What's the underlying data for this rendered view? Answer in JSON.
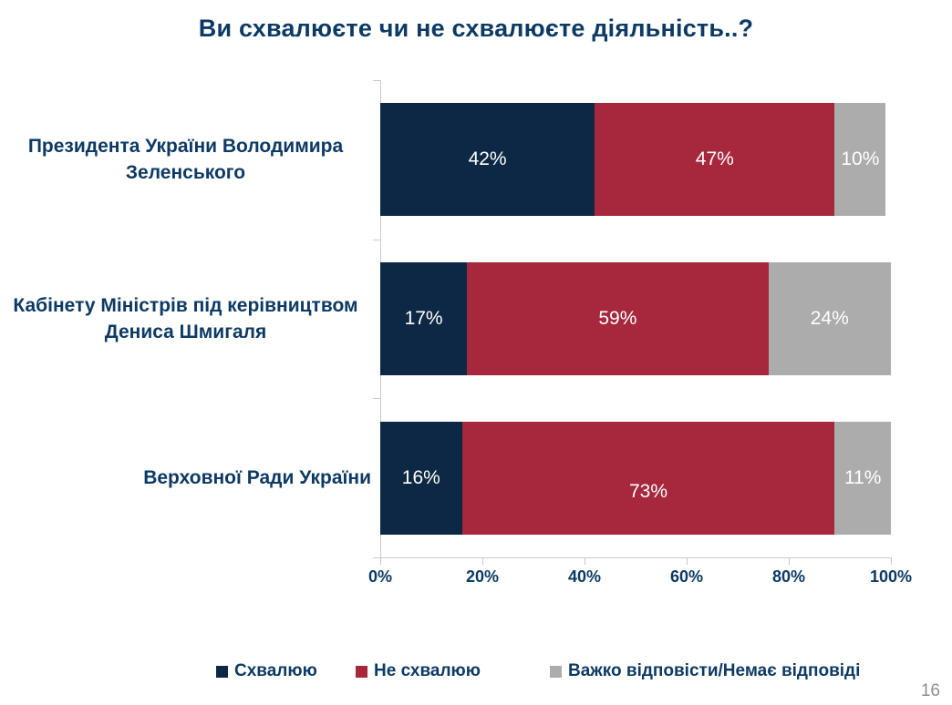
{
  "title": "Ви схвалюєте чи не схвалюєте діяльність..?",
  "page_number": "16",
  "colors": {
    "approve_navy": "#0d2844",
    "disapprove_crimson": "#a7283c",
    "undecided_gray": "#acacac",
    "text_navy": "#0d3a64",
    "axis_line": "#c9c9c9",
    "value_label": "#ffffff",
    "page_number_gray": "#8f8f8f"
  },
  "chart_data": {
    "type": "bar",
    "orientation": "horizontal",
    "stacked": true,
    "title": "Ви схвалюєте чи не схвалюєте діяльність..?",
    "categories": [
      "Президента України Володимира Зеленського",
      "Кабінету Міністрів під керівництвом Дениса Шмигаля",
      "Верховної Ради України"
    ],
    "series": [
      {
        "key": "approve",
        "name": "Схвалюю",
        "color": "#0d2844",
        "values": [
          42,
          17,
          16
        ]
      },
      {
        "key": "disapprove",
        "name": "Не схвалюю",
        "color": "#a7283c",
        "values": [
          47,
          59,
          73
        ]
      },
      {
        "key": "no-answer",
        "name": "Важко відповісти/Немає відповіді",
        "color": "#acacac",
        "values": [
          10,
          24,
          11
        ]
      }
    ],
    "value_labels": [
      [
        "42%",
        "47%",
        "10%"
      ],
      [
        "17%",
        "59%",
        "24%"
      ],
      [
        "16%",
        "73%",
        "11%"
      ]
    ],
    "label_dy": [
      [
        0,
        0,
        0
      ],
      [
        0,
        0,
        0
      ],
      [
        0,
        15,
        0
      ]
    ],
    "x_ticks": [
      "0%",
      "20%",
      "40%",
      "60%",
      "80%",
      "100%"
    ],
    "x_tick_values": [
      0,
      20,
      40,
      60,
      80,
      100
    ],
    "xlim": [
      0,
      100
    ],
    "grid": false,
    "legend_position": "bottom"
  },
  "legend": {
    "items": [
      {
        "label": "Схвалюю",
        "color": "#0d2844"
      },
      {
        "label": "Не схвалюю",
        "color": "#a7283c"
      },
      {
        "label": "Важко відповісти/Немає відповіді",
        "color": "#acacac"
      }
    ]
  }
}
